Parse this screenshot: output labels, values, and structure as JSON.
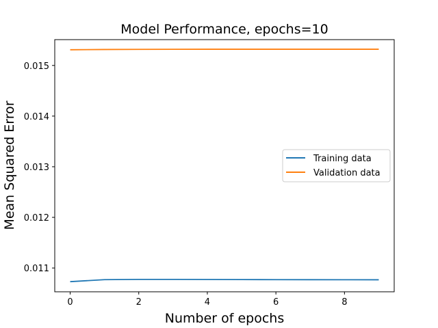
{
  "chart_data": {
    "type": "line",
    "title": "Model Performance, epochs=10",
    "xlabel": "Number of epochs",
    "ylabel": "Mean Squared Error",
    "xlim": [
      -0.45,
      9.45
    ],
    "ylim": [
      0.01053,
      0.01551
    ],
    "xticks": [
      0,
      2,
      4,
      6,
      8
    ],
    "yticks": [
      0.011,
      0.012,
      0.013,
      0.014,
      0.015
    ],
    "grid": false,
    "legend_position": "center-right",
    "x": [
      0,
      1,
      2,
      3,
      4,
      5,
      6,
      7,
      8,
      9
    ],
    "series": [
      {
        "name": "Training data",
        "color": "#1f77b4",
        "values": [
          0.01073,
          0.01077,
          0.010775,
          0.010775,
          0.010773,
          0.010771,
          0.01077,
          0.010769,
          0.010768,
          0.010767
        ]
      },
      {
        "name": "Validation data",
        "color": "#ff7f0e",
        "values": [
          0.01531,
          0.015315,
          0.015318,
          0.015319,
          0.01532,
          0.01532,
          0.01532,
          0.01532,
          0.01532,
          0.01532
        ]
      }
    ]
  }
}
